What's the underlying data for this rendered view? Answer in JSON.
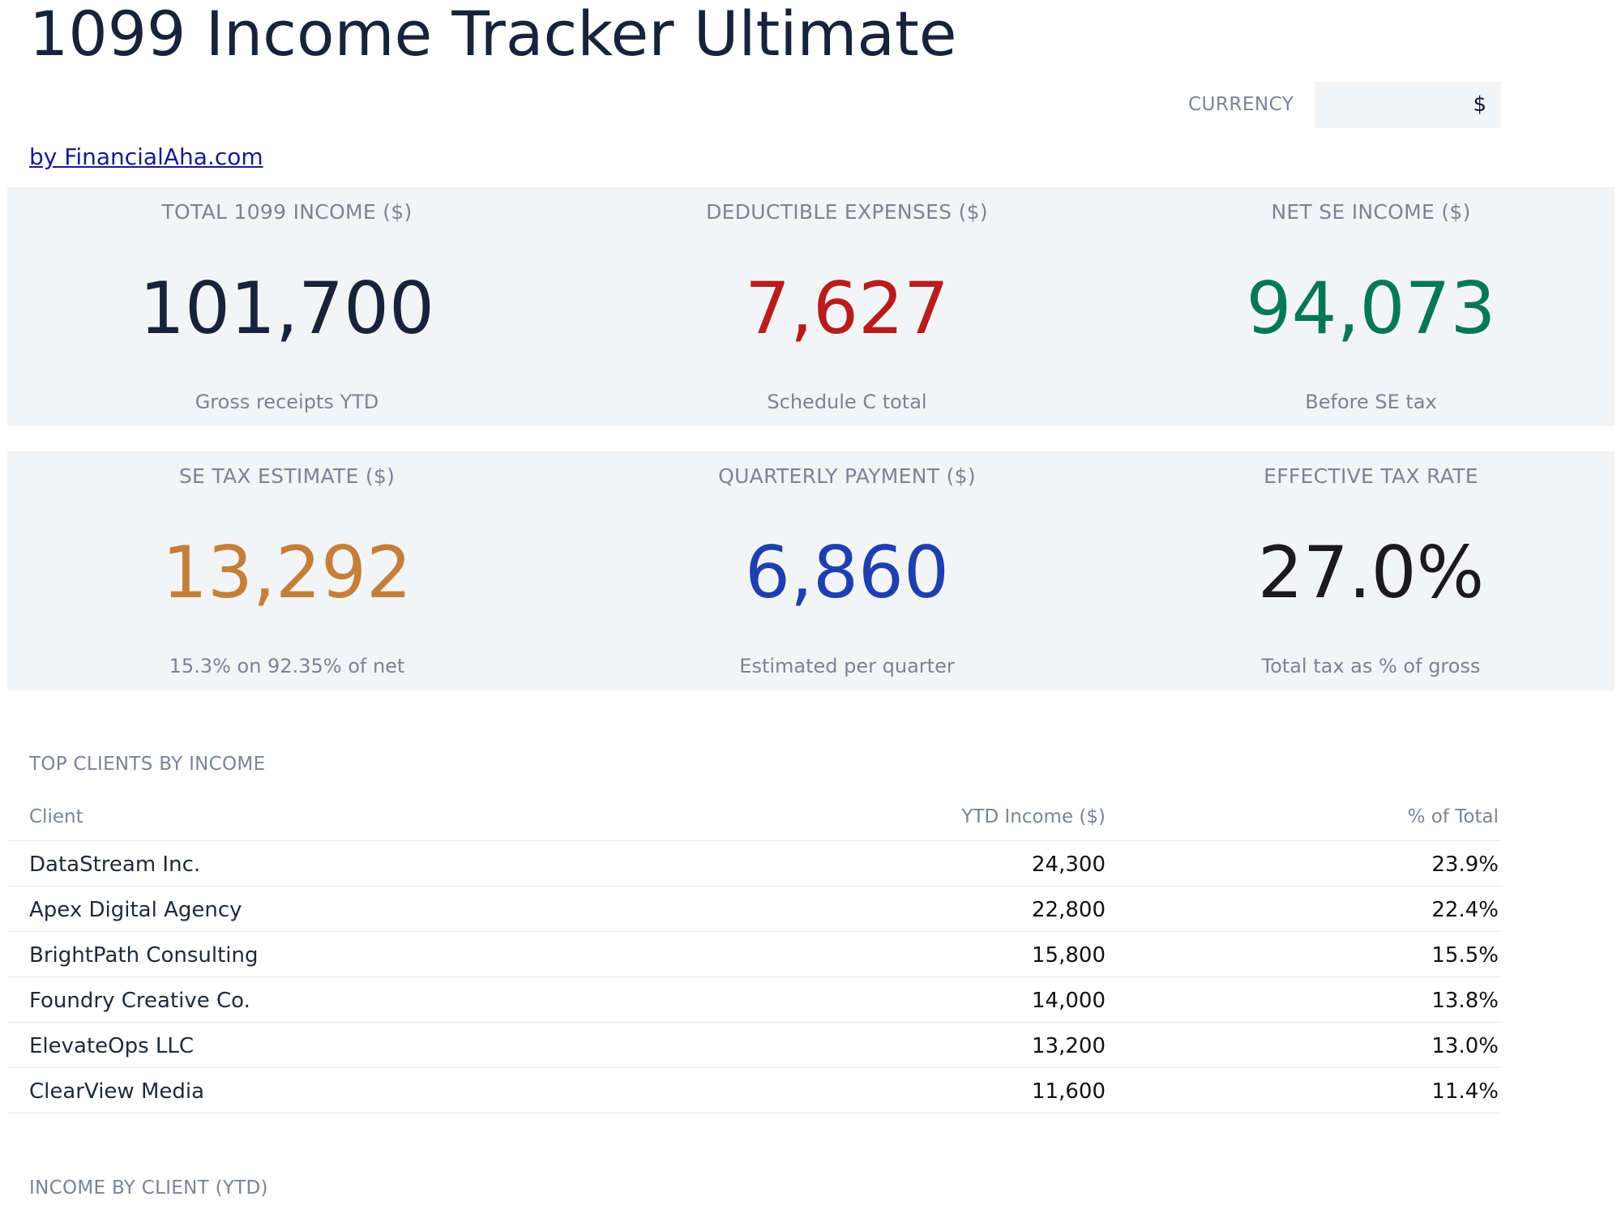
{
  "header": {
    "title": "1099 Income Tracker Ultimate",
    "byline": "by FinancialAha.com",
    "currency_label": "CURRENCY",
    "currency_value": "$"
  },
  "kpis": [
    {
      "label": "TOTAL 1099 INCOME ($)",
      "value": "101,700",
      "sub": "Gross receipts YTD",
      "color": "#17223b"
    },
    {
      "label": "DEDUCTIBLE EXPENSES ($)",
      "value": "7,627",
      "sub": "Schedule C total",
      "color": "#b91c1c"
    },
    {
      "label": "NET SE INCOME ($)",
      "value": "94,073",
      "sub": "Before SE tax",
      "color": "#047857"
    },
    {
      "label": "SE TAX ESTIMATE ($)",
      "value": "13,292",
      "sub": "15.3% on 92.35% of net",
      "color": "#c47f3a"
    },
    {
      "label": "QUARTERLY PAYMENT ($)",
      "value": "6,860",
      "sub": "Estimated per quarter",
      "color": "#1e40af"
    },
    {
      "label": "EFFECTIVE TAX RATE",
      "value": "27.0%",
      "sub": "Total tax as % of gross",
      "color": "#1a1a1f"
    }
  ],
  "top_clients": {
    "section_title": "TOP CLIENTS BY INCOME",
    "columns": [
      "Client",
      "YTD Income ($)",
      "% of Total"
    ],
    "rows": [
      [
        "DataStream Inc.",
        "24,300",
        "23.9%"
      ],
      [
        "Apex Digital Agency",
        "22,800",
        "22.4%"
      ],
      [
        "BrightPath Consulting",
        "15,800",
        "15.5%"
      ],
      [
        "Foundry Creative Co.",
        "14,000",
        "13.8%"
      ],
      [
        "ElevateOps LLC",
        "13,200",
        "13.0%"
      ],
      [
        "ClearView Media",
        "11,600",
        "11.4%"
      ]
    ]
  },
  "income_by_client": {
    "section_title": "INCOME BY CLIENT (YTD)"
  }
}
